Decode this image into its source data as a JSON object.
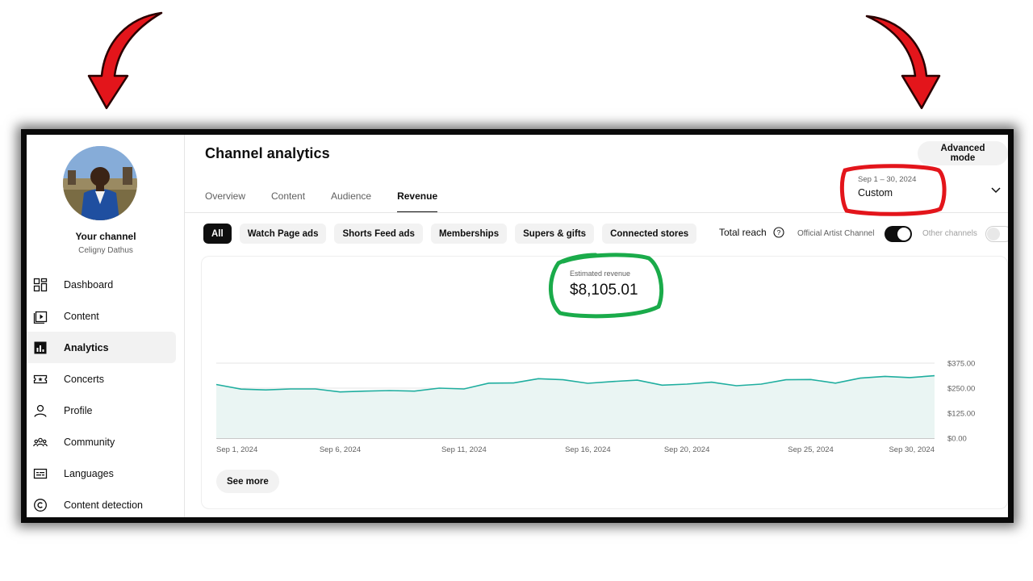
{
  "page": {
    "title": "Channel analytics",
    "advanced_mode": "Advanced mode"
  },
  "channel": {
    "label": "Your channel",
    "name": "Celigny Dathus"
  },
  "sidebar": {
    "items": [
      {
        "label": "Dashboard",
        "icon": "dashboard-icon",
        "active": false
      },
      {
        "label": "Content",
        "icon": "content-icon",
        "active": false
      },
      {
        "label": "Analytics",
        "icon": "analytics-icon",
        "active": true
      },
      {
        "label": "Concerts",
        "icon": "ticket-icon",
        "active": false
      },
      {
        "label": "Profile",
        "icon": "profile-icon",
        "active": false
      },
      {
        "label": "Community",
        "icon": "community-icon",
        "active": false
      },
      {
        "label": "Languages",
        "icon": "subtitles-icon",
        "active": false
      },
      {
        "label": "Content detection",
        "icon": "copyright-icon",
        "active": false
      }
    ]
  },
  "tabs": [
    {
      "label": "Overview",
      "active": false
    },
    {
      "label": "Content",
      "active": false
    },
    {
      "label": "Audience",
      "active": false
    },
    {
      "label": "Revenue",
      "active": true
    }
  ],
  "date_range": {
    "range": "Sep 1 – 30, 2024",
    "preset": "Custom"
  },
  "chips": [
    {
      "label": "All",
      "active": true
    },
    {
      "label": "Watch Page ads",
      "active": false
    },
    {
      "label": "Shorts Feed ads",
      "active": false
    },
    {
      "label": "Memberships",
      "active": false
    },
    {
      "label": "Supers & gifts",
      "active": false
    },
    {
      "label": "Connected stores",
      "active": false
    }
  ],
  "reach": {
    "label": "Total reach",
    "artist_label": "Official Artist Channel",
    "artist_on": true,
    "other_label": "Other channels",
    "other_on": false
  },
  "metric": {
    "label": "Estimated revenue",
    "value": "$8,105.01"
  },
  "see_more": "See more",
  "colors": {
    "line": "#1fae9f",
    "fill": "#eaf5f3",
    "annotation_red": "#e3151b",
    "annotation_green": "#1aab4a"
  },
  "chart_data": {
    "type": "area",
    "x": [
      "Sep 1, 2024",
      "Sep 2, 2024",
      "Sep 3, 2024",
      "Sep 4, 2024",
      "Sep 5, 2024",
      "Sep 6, 2024",
      "Sep 7, 2024",
      "Sep 8, 2024",
      "Sep 9, 2024",
      "Sep 10, 2024",
      "Sep 11, 2024",
      "Sep 12, 2024",
      "Sep 13, 2024",
      "Sep 14, 2024",
      "Sep 15, 2024",
      "Sep 16, 2024",
      "Sep 17, 2024",
      "Sep 18, 2024",
      "Sep 19, 2024",
      "Sep 20, 2024",
      "Sep 21, 2024",
      "Sep 22, 2024",
      "Sep 23, 2024",
      "Sep 24, 2024",
      "Sep 25, 2024",
      "Sep 26, 2024",
      "Sep 27, 2024",
      "Sep 28, 2024",
      "Sep 29, 2024",
      "Sep 30, 2024"
    ],
    "series": [
      {
        "values": [
          268,
          245,
          241,
          246,
          246,
          231,
          235,
          238,
          235,
          250,
          246,
          275,
          276,
          297,
          292,
          274,
          283,
          290,
          265,
          270,
          280,
          262,
          270,
          292,
          293,
          275,
          300,
          309,
          303,
          312
        ]
      }
    ],
    "x_ticks": [
      "Sep 1, 2024",
      "Sep 6, 2024",
      "Sep 11, 2024",
      "Sep 16, 2024",
      "Sep 20, 2024",
      "Sep 25, 2024",
      "Sep 30, 2024"
    ],
    "y_ticks": [
      "$375.00",
      "$250.00",
      "$125.00",
      "$0.00"
    ],
    "ylim": [
      0,
      375
    ],
    "grid": true
  }
}
